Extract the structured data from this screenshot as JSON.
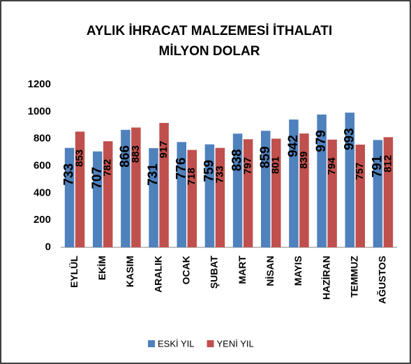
{
  "chart_data": {
    "type": "bar",
    "title": [
      "AYLIK İHRACAT MALZEMESİ İTHALATI",
      "MİLYON DOLAR"
    ],
    "categories": [
      "EYLÜL",
      "EKİM",
      "KASIM",
      "ARALIK",
      "OCAK",
      "ŞUBAT",
      "MART",
      "NİSAN",
      "MAYIS",
      "HAZİRAN",
      "TEMMUZ",
      "AĞUSTOS"
    ],
    "series": [
      {
        "name": "ESKİ YIL",
        "color": "#4f81bd",
        "values": [
          733,
          707,
          866,
          731,
          776,
          759,
          838,
          859,
          942,
          979,
          993,
          791
        ]
      },
      {
        "name": "YENİ YIL",
        "color": "#c0504d",
        "values": [
          853,
          782,
          883,
          917,
          718,
          733,
          797,
          801,
          839,
          794,
          757,
          812
        ]
      }
    ],
    "ylim": [
      0,
      1200
    ],
    "yticks": [
      0,
      200,
      400,
      600,
      800,
      1000,
      1200
    ],
    "grid": false,
    "legend": "bottom"
  }
}
